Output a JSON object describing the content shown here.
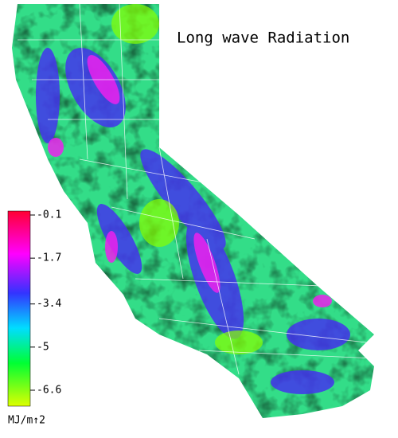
{
  "title": "Long wave Radiation",
  "colorbar": {
    "ticks": [
      -0.1,
      -1.7,
      -3.4,
      -5.0,
      -6.6
    ],
    "unit": "MJ/m↑2"
  }
}
